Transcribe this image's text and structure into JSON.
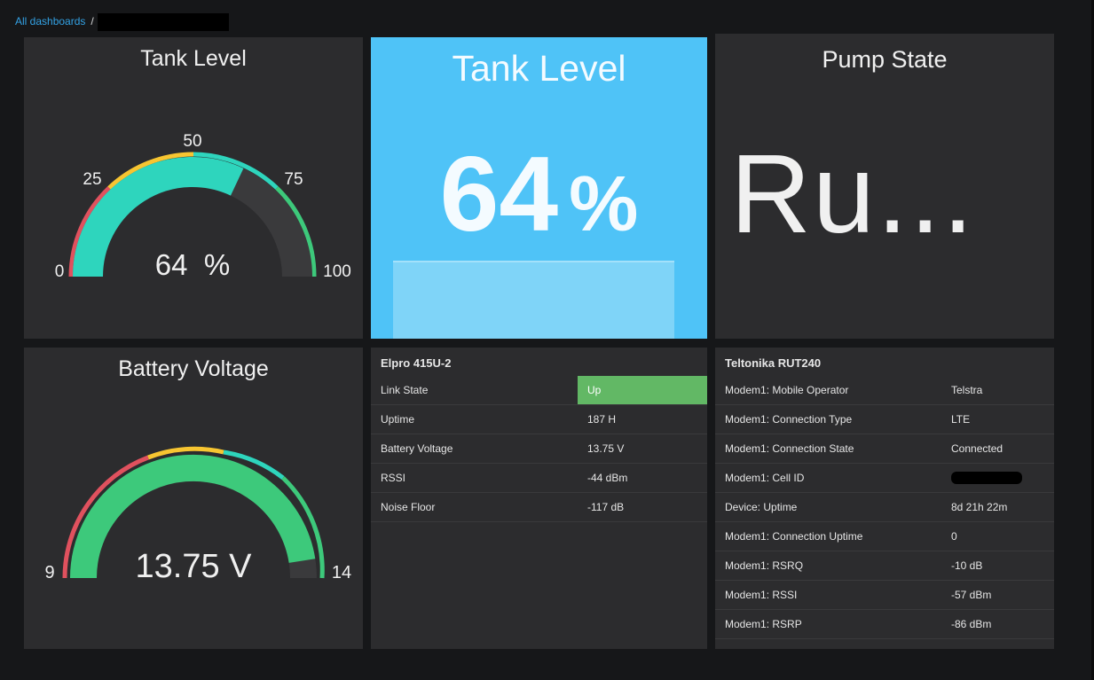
{
  "breadcrumb": {
    "root": "All dashboards",
    "separator": "/"
  },
  "tank_gauge": {
    "title": "Tank Level",
    "value": 64,
    "unit": "%",
    "display": "64  %",
    "min": 0,
    "max": 100,
    "ticks": [
      "0",
      "25",
      "50",
      "75",
      "100"
    ]
  },
  "tank_stat": {
    "title": "Tank Level",
    "value": "64",
    "unit": "%",
    "level": 0.64
  },
  "pump": {
    "title": "Pump State",
    "value": "Ru..."
  },
  "battery_gauge": {
    "title": "Battery Voltage",
    "value": 13.75,
    "display": "13.75 V",
    "min": 9,
    "max": 14,
    "ticks": [
      "9",
      "14"
    ]
  },
  "elpro": {
    "title": "Elpro 415U-2",
    "rows": [
      {
        "label": "Link State",
        "value": "Up"
      },
      {
        "label": "Uptime",
        "value": "187 H"
      },
      {
        "label": "Battery Voltage",
        "value": "13.75 V"
      },
      {
        "label": "RSSI",
        "value": "-44 dBm"
      },
      {
        "label": "Noise Floor",
        "value": "-117 dB"
      }
    ]
  },
  "teltonika": {
    "title": "Teltonika RUT240",
    "rows": [
      {
        "label": "Modem1: Mobile Operator",
        "value": "Telstra"
      },
      {
        "label": "Modem1: Connection Type",
        "value": "LTE"
      },
      {
        "label": "Modem1: Connection State",
        "value": "Connected"
      },
      {
        "label": "Modem1: Cell ID",
        "value": ""
      },
      {
        "label": "Device: Uptime",
        "value": "8d 21h 22m"
      },
      {
        "label": "Modem1: Connection Uptime",
        "value": "0"
      },
      {
        "label": "Modem1: RSRQ",
        "value": "-10 dB"
      },
      {
        "label": "Modem1: RSSI",
        "value": "-57 dBm"
      },
      {
        "label": "Modem1: RSRP",
        "value": "-86 dBm"
      }
    ]
  },
  "colors": {
    "background": "#161719",
    "panel": "#2c2c2e",
    "accent_blue": "#4fc3f7",
    "gauge_teal": "#2ed5bd",
    "gauge_green": "#3dc97b",
    "threshold_red": "#e0515e",
    "threshold_yellow": "#f7c531",
    "status_green": "#62b865",
    "link": "#33a2e5"
  }
}
